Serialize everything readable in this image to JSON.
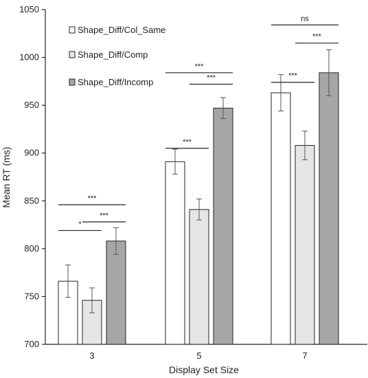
{
  "chart_data": {
    "type": "bar",
    "ylabel": "Mean RT (ms)",
    "xlabel": "Display Set Size",
    "ylim": [
      700,
      1050
    ],
    "yticks": [
      700,
      750,
      800,
      850,
      900,
      950,
      1000,
      1050
    ],
    "categories": [
      "3",
      "5",
      "7"
    ],
    "grid": false,
    "legend_position": "top-left",
    "series": [
      {
        "name": "Shape_Diff/Col_Same",
        "color": "#ffffff",
        "values": [
          766,
          891,
          963
        ],
        "errors": [
          17,
          13,
          19
        ]
      },
      {
        "name": "Shape_Diff/Comp",
        "color": "#e6e6e6",
        "values": [
          746,
          841,
          908
        ],
        "errors": [
          13,
          11,
          15
        ]
      },
      {
        "name": "Shape_Diff/Incomp",
        "color": "#a6a6a6",
        "values": [
          808,
          947,
          984
        ],
        "errors": [
          14,
          11,
          24
        ]
      }
    ],
    "significance": [
      {
        "category": 0,
        "from": 0,
        "to": 1,
        "label": "*",
        "y": 819
      },
      {
        "category": 0,
        "from": 1,
        "to": 2,
        "label": "***",
        "y": 828
      },
      {
        "category": 0,
        "from": 0,
        "to": 2,
        "label": "***",
        "y": 846
      },
      {
        "category": 1,
        "from": 0,
        "to": 1,
        "label": "***",
        "y": 905
      },
      {
        "category": 1,
        "from": 1,
        "to": 2,
        "label": "***",
        "y": 972
      },
      {
        "category": 1,
        "from": 0,
        "to": 2,
        "label": "***",
        "y": 984
      },
      {
        "category": 2,
        "from": 0,
        "to": 1,
        "label": "***",
        "y": 974
      },
      {
        "category": 2,
        "from": 1,
        "to": 2,
        "label": "***",
        "y": 1015
      },
      {
        "category": 2,
        "from": 0,
        "to": 2,
        "label": "ns",
        "y": 1034
      }
    ]
  }
}
